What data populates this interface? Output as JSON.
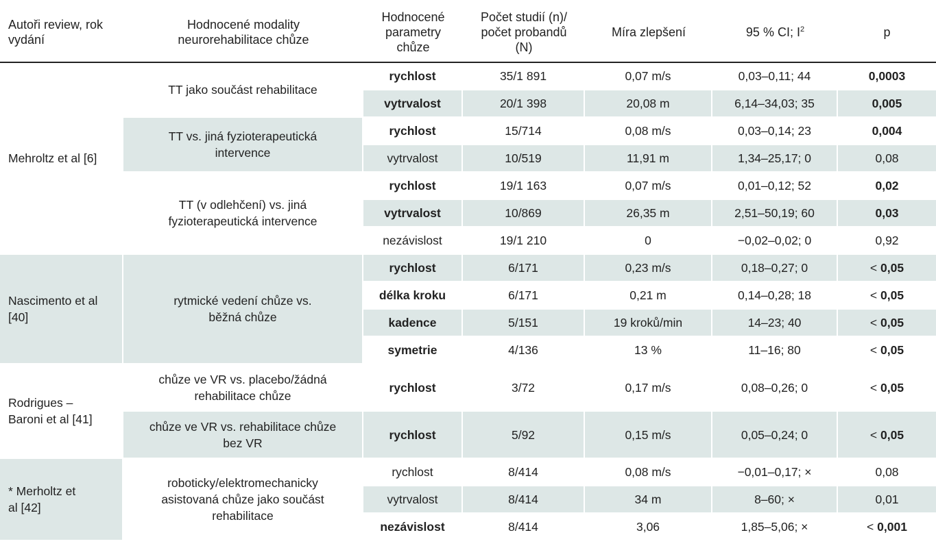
{
  "header": {
    "col1": "Autoři review, rok vydání",
    "col2": "Hodnocené modality neurorehabilitace chůze",
    "col3": "Hodnocené parametry chůze",
    "col4": "Počet studií (n)/ počet probandů (N)",
    "col5": "Míra zlepšení",
    "col6_main": "95 % CI; I",
    "col6_sup": "2",
    "col7": "p"
  },
  "groups": [
    {
      "author": "Mehroltz et al [6]",
      "modalities": [
        {
          "label": "TT jako součást rehabilitace",
          "rows": [
            {
              "param": "rychlost",
              "n": "35/1 891",
              "improvement": "0,07 m/s",
              "ci": "0,03–0,11; 44",
              "p": "0,0003"
            },
            {
              "param": "vytrvalost",
              "n": "20/1 398",
              "improvement": "20,08 m",
              "ci": "6,14–34,03; 35",
              "p": "0,005"
            }
          ]
        },
        {
          "label": "TT vs. jiná fyzioterapeutická intervence",
          "rows": [
            {
              "param": "rychlost",
              "n": "15/714",
              "improvement": "0,08 m/s",
              "ci": "0,03–0,14; 23",
              "p": "0,004"
            },
            {
              "param": "vytrvalost",
              "n": "10/519",
              "improvement": "11,91 m",
              "ci": "1,34–25,17; 0",
              "p": "0,08"
            }
          ]
        },
        {
          "label": "TT (v odlehčení) vs. jiná fyzioterapeutická intervence",
          "rows": [
            {
              "param": "rychlost",
              "n": "19/1 163",
              "improvement": "0,07 m/s",
              "ci": "0,01–0,12; 52",
              "p": "0,02"
            },
            {
              "param": "vytrvalost",
              "n": "10/869",
              "improvement": "26,35 m",
              "ci": "2,51–50,19; 60",
              "p": "0,03"
            },
            {
              "param": "nezávislost",
              "n": "19/1 210",
              "improvement": "0",
              "ci": "−0,02–0,02; 0",
              "p": "0,92"
            }
          ]
        }
      ]
    },
    {
      "author": "Nascimento et al [40]",
      "modalities": [
        {
          "label": "rytmické vedení chůze vs. běžná chůze",
          "rows": [
            {
              "param": "rychlost",
              "n": "6/171",
              "improvement": "0,23 m/s",
              "ci": "0,18–0,27; 0",
              "p_prefix": "< ",
              "p": "0,05"
            },
            {
              "param": "délka kroku",
              "n": "6/171",
              "improvement": "0,21 m",
              "ci": "0,14–0,28; 18",
              "p_prefix": "< ",
              "p": "0,05"
            },
            {
              "param": "kadence",
              "n": "5/151",
              "improvement": "19 kroků/min",
              "ci": "14–23; 40",
              "p_prefix": "< ",
              "p": "0,05"
            },
            {
              "param": "symetrie",
              "n": "4/136",
              "improvement": "13 %",
              "ci": "11–16; 80",
              "p_prefix": "< ",
              "p": "0,05"
            }
          ]
        }
      ]
    },
    {
      "author": "Rodrigues – Baroni et al [41]",
      "modalities": [
        {
          "label": "chůze ve VR vs. placebo/žádná rehabilitace chůze",
          "rows": [
            {
              "param": "rychlost",
              "n": "3/72",
              "improvement": "0,17 m/s",
              "ci": "0,08–0,26; 0",
              "p_prefix": "< ",
              "p": "0,05"
            }
          ]
        },
        {
          "label": "chůze ve VR vs. rehabilitace chůze bez VR",
          "rows": [
            {
              "param": "rychlost",
              "n": "5/92",
              "improvement": "0,15 m/s",
              "ci": "0,05–0,24; 0",
              "p_prefix": "< ",
              "p": "0,05"
            }
          ]
        }
      ]
    },
    {
      "author": "* Merholtz et al [42]",
      "modalities": [
        {
          "label": "roboticky/elektromechanicky asistovaná chůze jako součást rehabilitace",
          "rows": [
            {
              "param": "rychlost",
              "n": "8/414",
              "improvement": "0,08 m/s",
              "ci": "−0,01–0,17; ×",
              "p": "0,08"
            },
            {
              "param": "vytrvalost",
              "n": "8/414",
              "improvement": "34 m",
              "ci": "8–60; ×",
              "p": "0,01"
            },
            {
              "param": "nezávislost",
              "n": "8/414",
              "improvement": "3,06",
              "ci": "1,85–5,06; ×",
              "p_prefix": "< ",
              "p": "0,001"
            }
          ]
        }
      ]
    }
  ]
}
